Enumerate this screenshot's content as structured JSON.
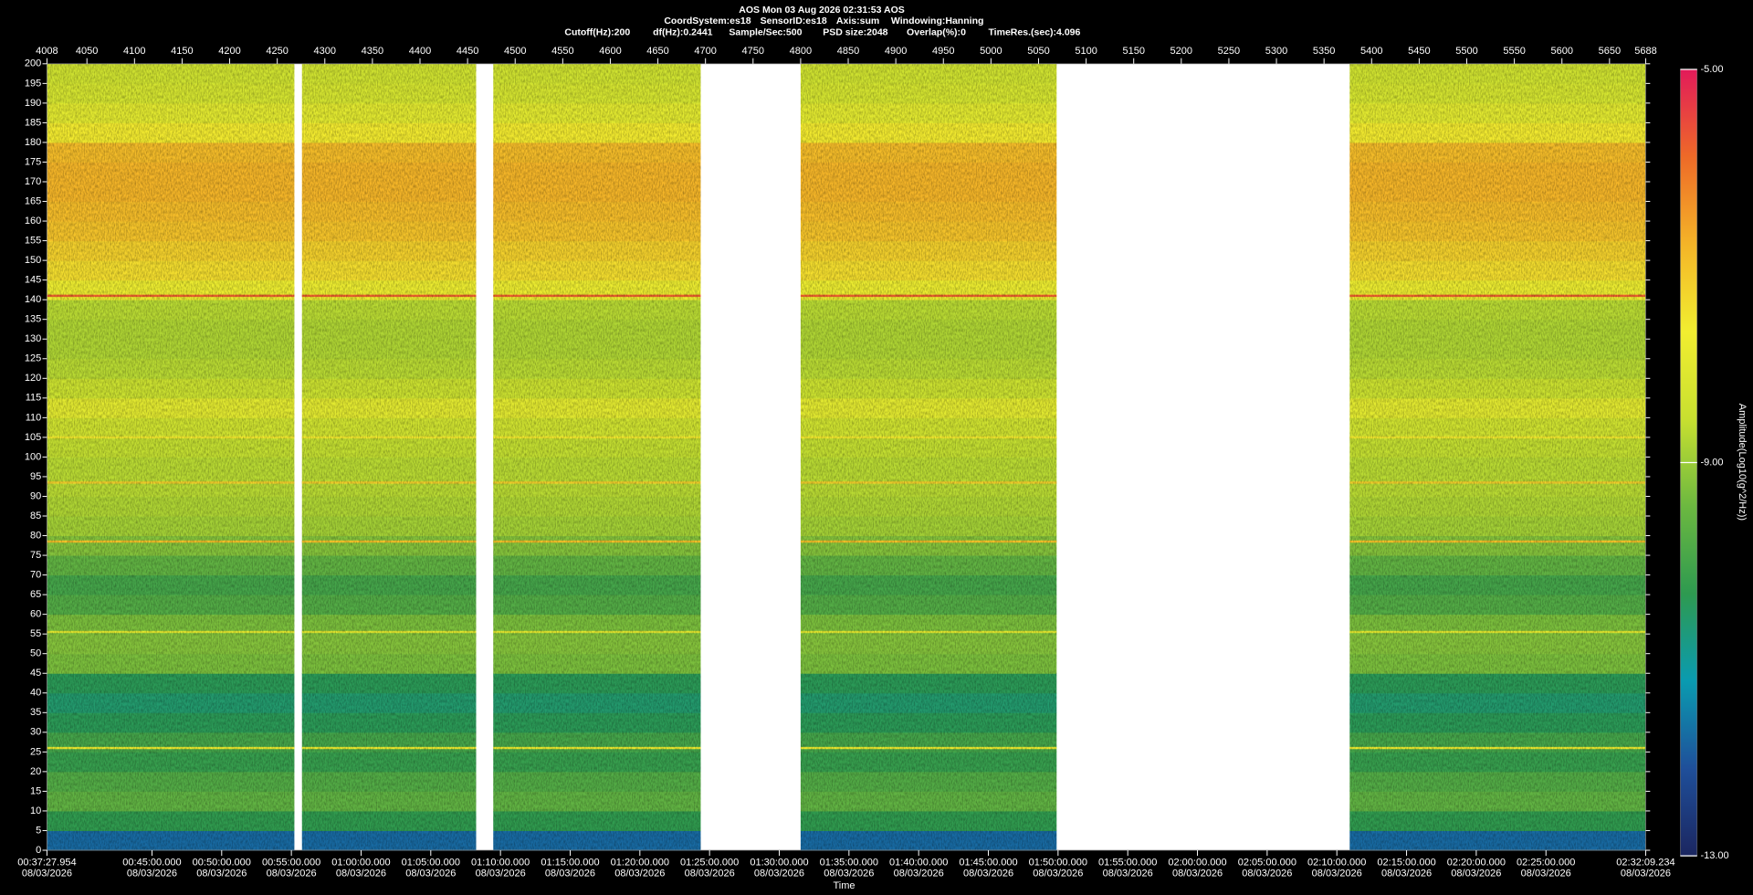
{
  "header": {
    "lines": [
      [
        "AOS  Mon 03 Aug 2026 02:31:53  AOS"
      ],
      [
        "CoordSystem:es18",
        "SensorID:es18",
        "Axis:sum",
        "Windowing:Hanning"
      ],
      [
        "Cutoff(Hz):200",
        "df(Hz):0.2441",
        "Sample/Sec:500",
        "PSD size:2048",
        "Overlap(%):0",
        "TimeRes.(sec):4.096"
      ]
    ]
  },
  "chart_data": {
    "type": "spectrogram",
    "xlabel": "Time",
    "colorbar_label": "Amplitude(Log10(g^2/Hz))",
    "xlim": [
      4008,
      5688
    ],
    "xticks": [
      4008,
      4050,
      4100,
      4150,
      4200,
      4250,
      4300,
      4350,
      4400,
      4450,
      4500,
      4550,
      4600,
      4650,
      4700,
      4750,
      4800,
      4850,
      4900,
      4950,
      5000,
      5050,
      5100,
      5150,
      5200,
      5250,
      5300,
      5350,
      5400,
      5450,
      5500,
      5550,
      5600,
      5650,
      5688
    ],
    "time_lim": [
      2247.954,
      9129.234
    ],
    "tick_date": "08/03/2026",
    "time_ticks": [
      {
        "value": 2247.954,
        "label": "00:37:27.954"
      },
      {
        "value": 2700,
        "label": "00:45:00.000"
      },
      {
        "value": 3000,
        "label": "00:50:00.000"
      },
      {
        "value": 3300,
        "label": "00:55:00.000"
      },
      {
        "value": 3600,
        "label": "01:00:00.000"
      },
      {
        "value": 3900,
        "label": "01:05:00.000"
      },
      {
        "value": 4200,
        "label": "01:10:00.000"
      },
      {
        "value": 4500,
        "label": "01:15:00.000"
      },
      {
        "value": 4800,
        "label": "01:20:00.000"
      },
      {
        "value": 5100,
        "label": "01:25:00.000"
      },
      {
        "value": 5400,
        "label": "01:30:00.000"
      },
      {
        "value": 5700,
        "label": "01:35:00.000"
      },
      {
        "value": 6000,
        "label": "01:40:00.000"
      },
      {
        "value": 6300,
        "label": "01:45:00.000"
      },
      {
        "value": 6600,
        "label": "01:50:00.000"
      },
      {
        "value": 6900,
        "label": "01:55:00.000"
      },
      {
        "value": 7200,
        "label": "02:00:00.000"
      },
      {
        "value": 7500,
        "label": "02:05:00.000"
      },
      {
        "value": 7800,
        "label": "02:10:00.000"
      },
      {
        "value": 8100,
        "label": "02:15:00.000"
      },
      {
        "value": 8400,
        "label": "02:20:00.000"
      },
      {
        "value": 8700,
        "label": "02:25:00.000"
      },
      {
        "value": 9129.234,
        "label": "02:32:09.234"
      }
    ],
    "ylim": [
      0,
      200
    ],
    "yticks": [
      0,
      5,
      10,
      15,
      20,
      25,
      30,
      35,
      40,
      45,
      50,
      55,
      60,
      65,
      70,
      75,
      80,
      85,
      90,
      95,
      100,
      105,
      110,
      115,
      120,
      125,
      130,
      135,
      140,
      145,
      150,
      155,
      160,
      165,
      170,
      175,
      180,
      185,
      190,
      195,
      200
    ],
    "clim": [
      -13,
      -5
    ],
    "cticks": [
      {
        "value": -5,
        "label": "-5.00"
      },
      {
        "value": -9,
        "label": "-9.00"
      },
      {
        "value": -13,
        "label": "-13.00"
      }
    ],
    "colormap": [
      "#1b2660",
      "#1f4f9a",
      "#0a9bb0",
      "#2e9a50",
      "#6cb840",
      "#c8e030",
      "#f2ee30",
      "#f4b428",
      "#ee6a28",
      "#e21a5a"
    ],
    "segments": [
      [
        4008,
        4268
      ],
      [
        4276,
        4459
      ],
      [
        4477,
        4695
      ],
      [
        4800,
        5069
      ],
      [
        5377,
        5688
      ]
    ],
    "bins": [
      0,
      5,
      10,
      15,
      20,
      25,
      30,
      35,
      40,
      45,
      50,
      55,
      60,
      65,
      70,
      75,
      80,
      85,
      90,
      95,
      100,
      105,
      110,
      115,
      120,
      125,
      130,
      135,
      140,
      145,
      150,
      155,
      160,
      165,
      170,
      175,
      180,
      185,
      190,
      195,
      200
    ],
    "levels": [
      -11.8,
      -10.3,
      -9.6,
      -9.8,
      -10.2,
      -10,
      -10.4,
      -10.6,
      -10.4,
      -9.3,
      -9.2,
      -9.3,
      -9.8,
      -10,
      -9.6,
      -9.2,
      -8.9,
      -8.8,
      -8.7,
      -8.7,
      -8.6,
      -8.4,
      -8,
      -8.5,
      -8.7,
      -8.8,
      -8.8,
      -8.7,
      -7.8,
      -7.4,
      -7.2,
      -7,
      -6.9,
      -6.8,
      -6.8,
      -6.9,
      -7.6,
      -8,
      -8.3,
      -8.4
    ],
    "lines": [
      {
        "freq": 141,
        "level": -5.8
      },
      {
        "freq": 105,
        "level": -7.6
      },
      {
        "freq": 93.5,
        "level": -7.2
      },
      {
        "freq": 78.5,
        "level": -7
      },
      {
        "freq": 55.5,
        "level": -8
      },
      {
        "freq": 26,
        "level": -7.8
      }
    ]
  }
}
